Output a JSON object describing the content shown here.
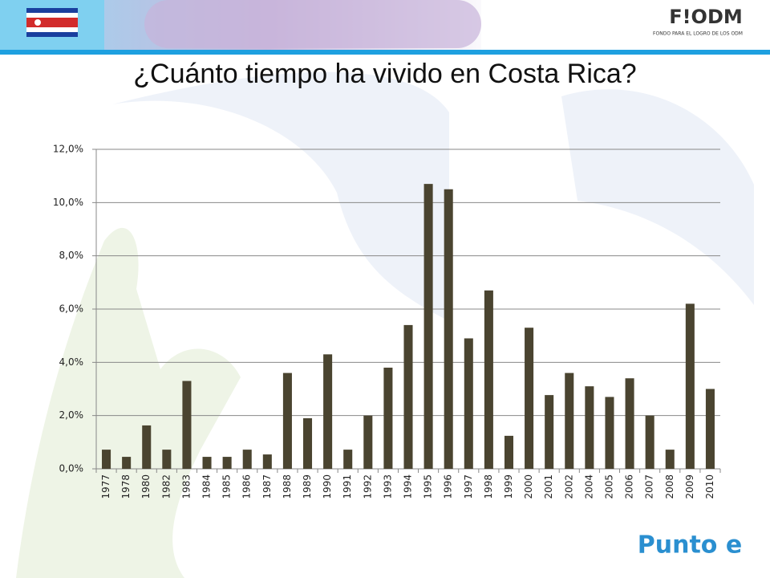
{
  "header": {
    "logo": "F!ODM",
    "logo_subtitle": "FONDO PARA EL LOGRO DE LOS ODM",
    "footer_logo": "Punto e"
  },
  "chart_data": {
    "type": "bar",
    "title": "¿Cuánto tiempo ha vivido en Costa Rica?",
    "categories": [
      "1977",
      "1978",
      "1980",
      "1982",
      "1983",
      "1984",
      "1985",
      "1986",
      "1987",
      "1988",
      "1989",
      "1990",
      "1991",
      "1992",
      "1993",
      "1994",
      "1995",
      "1996",
      "1997",
      "1998",
      "1999",
      "2000",
      "2001",
      "2002",
      "2004",
      "2005",
      "2006",
      "2007",
      "2008",
      "2009",
      "2010"
    ],
    "values": [
      0.72,
      0.45,
      1.63,
      0.72,
      3.3,
      0.45,
      0.45,
      0.72,
      0.54,
      3.6,
      1.9,
      4.3,
      0.72,
      2.0,
      3.8,
      5.4,
      10.7,
      10.5,
      4.9,
      6.7,
      1.24,
      5.3,
      2.77,
      3.6,
      3.1,
      2.7,
      3.4,
      2.0,
      0.72,
      6.2,
      3.0
    ],
    "color": "#4a4430",
    "ylim": [
      0,
      12
    ],
    "yticks": [
      {
        "value": 0,
        "label": "0,0%"
      },
      {
        "value": 2,
        "label": "2,0%"
      },
      {
        "value": 4,
        "label": "4,0%"
      },
      {
        "value": 6,
        "label": "6,0%"
      },
      {
        "value": 8,
        "label": "8,0%"
      },
      {
        "value": 10,
        "label": "10,0%"
      },
      {
        "value": 12,
        "label": "12,0%"
      }
    ],
    "grid": true
  }
}
